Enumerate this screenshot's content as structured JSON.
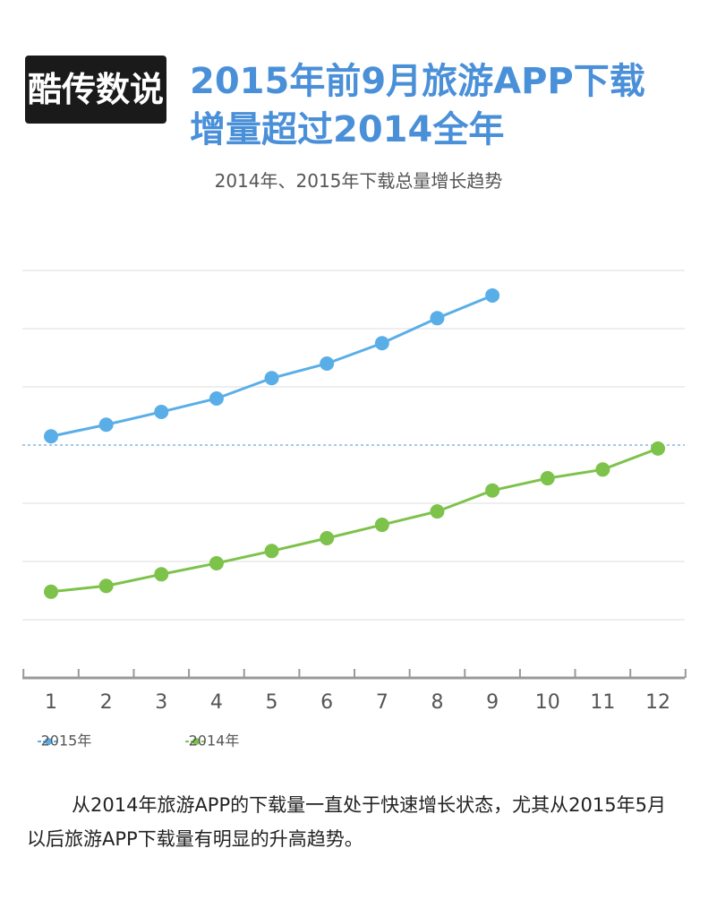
{
  "logo": "酷传数说",
  "chart_data": {
    "type": "line",
    "title_lines": [
      "2015年前9月旅游APP下载",
      "增量超过2014全年"
    ],
    "subtitle": "2014年、2015年下载总量增长趋势",
    "categories": [
      "1",
      "2",
      "3",
      "4",
      "5",
      "6",
      "7",
      "8",
      "9",
      "10",
      "11",
      "12"
    ],
    "series": [
      {
        "name": "2015年",
        "color": "#5aaee8",
        "values": [
          41.5,
          43.5,
          45.7,
          48,
          51.5,
          54,
          57.5,
          61.8,
          65.7,
          null,
          null,
          null
        ]
      },
      {
        "name": "2014年",
        "color": "#7dc24b",
        "values": [
          14.8,
          15.8,
          17.8,
          19.7,
          21.8,
          24,
          26.3,
          28.6,
          32.2,
          34.3,
          35.8,
          39.4
        ]
      }
    ],
    "ylim": [
      0,
      70
    ],
    "yticks": [
      10,
      20,
      30,
      50,
      60,
      70
    ],
    "reference_line": 40,
    "grid": true
  },
  "footer": "从2014年旅游APP的下载量一直处于快速增长状态，尤其从2015年5月以后旅游APP下载量有明显的升高趋势。"
}
